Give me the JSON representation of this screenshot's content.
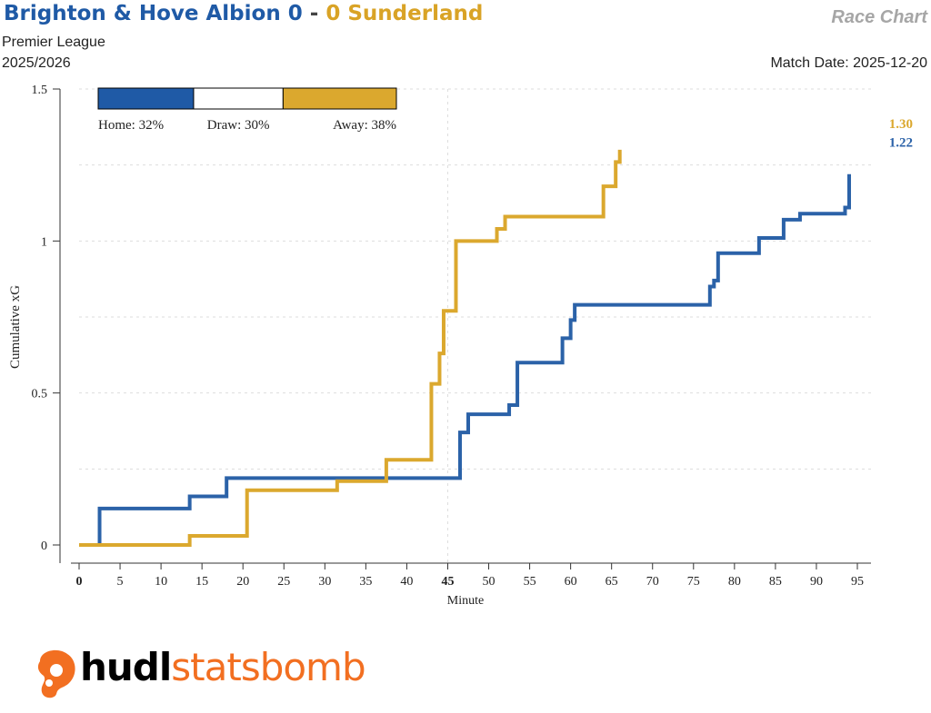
{
  "header": {
    "home_team": "Brighton & Hove Albion",
    "home_score": "0",
    "separator": "-",
    "away_score": "0",
    "away_team": "Sunderland",
    "league": "Premier League",
    "season": "2025/2026",
    "chart_label": "Race Chart",
    "match_date_label": "Match Date:",
    "match_date": "2025-12-20"
  },
  "colors": {
    "home": "#2b62a8",
    "away": "#dba82e",
    "home_title": "#1f5aa6",
    "away_title": "#d9a326"
  },
  "branding": {
    "logo_icon": "hudl-logo-icon",
    "logo_text_bold": "hudl",
    "logo_text_light": "statsbomb"
  },
  "chart_data": {
    "type": "line",
    "xlabel": "Minute",
    "ylabel": "Cumulative xG",
    "xlim": [
      0,
      96
    ],
    "ylim": [
      0,
      1.5
    ],
    "x_ticks": [
      0,
      5,
      10,
      15,
      20,
      25,
      30,
      35,
      40,
      45,
      50,
      55,
      60,
      65,
      70,
      75,
      80,
      85,
      90,
      95
    ],
    "x_tick_labels": [
      "0",
      "5",
      "10",
      "15",
      "20",
      "25",
      "30",
      "35",
      "40",
      "45",
      "50",
      "55",
      "60",
      "65",
      "70",
      "75",
      "80",
      "85",
      "90",
      "95"
    ],
    "y_ticks": [
      0,
      0.5,
      1,
      1.5
    ],
    "y_tick_labels": [
      "0",
      "0.5",
      "1",
      "1.5"
    ],
    "grid": true,
    "win_probability": {
      "home_label": "Home: 32%",
      "draw_label": "Draw: 30%",
      "away_label": "Away: 38%",
      "home": 32,
      "draw": 30,
      "away": 38
    },
    "series": [
      {
        "team": "home",
        "end_label": "1.22",
        "points": [
          [
            0,
            0
          ],
          [
            2.5,
            0.12
          ],
          [
            13.5,
            0.16
          ],
          [
            18,
            0.22
          ],
          [
            46.5,
            0.37
          ],
          [
            47.5,
            0.43
          ],
          [
            52.5,
            0.46
          ],
          [
            53.5,
            0.6
          ],
          [
            59,
            0.68
          ],
          [
            60,
            0.74
          ],
          [
            60.5,
            0.79
          ],
          [
            77,
            0.85
          ],
          [
            77.5,
            0.87
          ],
          [
            78,
            0.96
          ],
          [
            83,
            1.01
          ],
          [
            86,
            1.07
          ],
          [
            88,
            1.09
          ],
          [
            93.5,
            1.11
          ],
          [
            94,
            1.22
          ]
        ]
      },
      {
        "team": "away",
        "end_label": "1.30",
        "points": [
          [
            0,
            0
          ],
          [
            13.5,
            0.03
          ],
          [
            20.5,
            0.18
          ],
          [
            31.5,
            0.21
          ],
          [
            37.5,
            0.28
          ],
          [
            43,
            0.53
          ],
          [
            44,
            0.63
          ],
          [
            44.5,
            0.77
          ],
          [
            46,
            1.0
          ],
          [
            51,
            1.04
          ],
          [
            52,
            1.08
          ],
          [
            64,
            1.18
          ],
          [
            65.5,
            1.26
          ],
          [
            66,
            1.3
          ]
        ]
      }
    ]
  }
}
